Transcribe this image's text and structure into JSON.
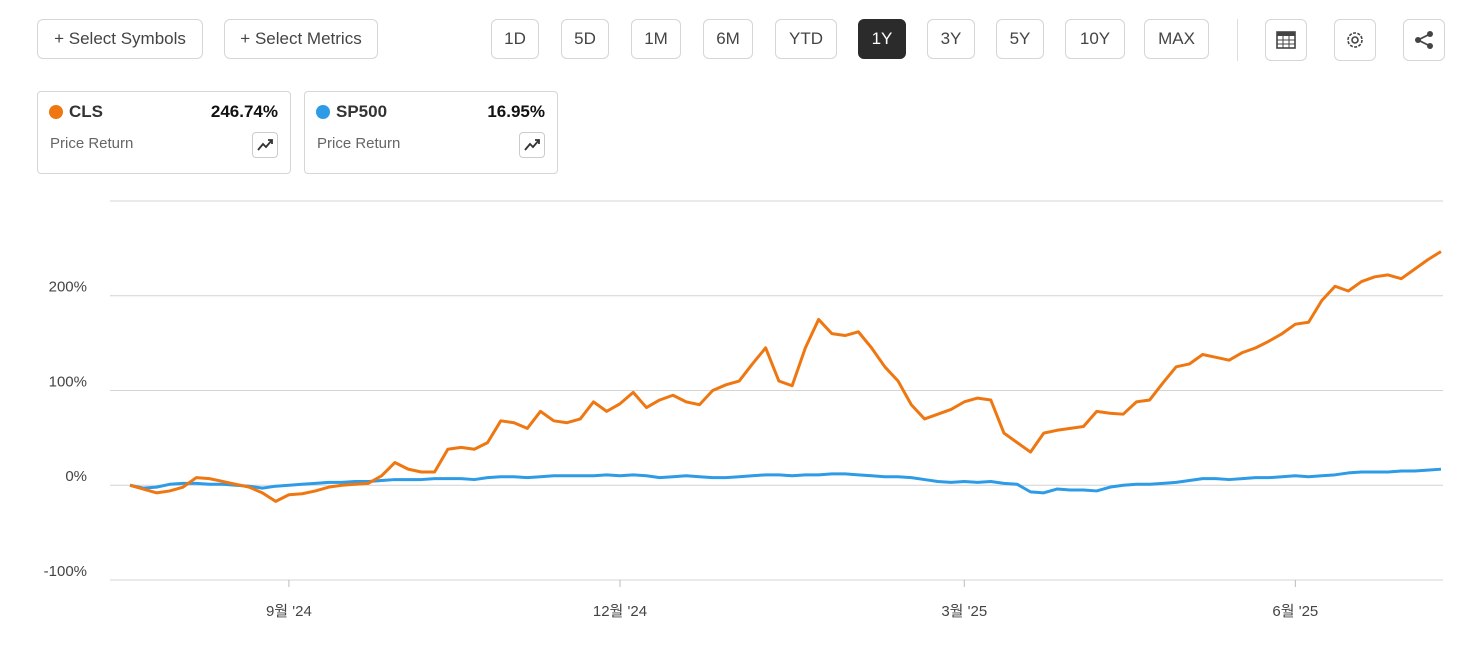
{
  "toolbar": {
    "select_symbols": "+ Select Symbols",
    "select_metrics": "+ Select Metrics",
    "ranges": [
      "1D",
      "5D",
      "1M",
      "6M",
      "YTD",
      "1Y",
      "3Y",
      "5Y",
      "10Y",
      "MAX"
    ],
    "active_range": "1Y"
  },
  "chart_data": {
    "type": "line",
    "categories": [
      null,
      null,
      null,
      null,
      null,
      null,
      null,
      null,
      null,
      null,
      null,
      null,
      "9월 '24",
      null,
      null,
      null,
      null,
      null,
      null,
      null,
      null,
      null,
      null,
      null,
      null,
      null,
      null,
      null,
      null,
      null,
      null,
      null,
      null,
      null,
      null,
      null,
      null,
      "12월 '24",
      null,
      null,
      null,
      null,
      null,
      null,
      null,
      null,
      null,
      null,
      null,
      null,
      null,
      null,
      null,
      null,
      null,
      null,
      null,
      null,
      null,
      null,
      null,
      null,
      null,
      "3월 '25",
      null,
      null,
      null,
      null,
      null,
      null,
      null,
      null,
      null,
      null,
      null,
      null,
      null,
      null,
      null,
      null,
      null,
      null,
      null,
      null,
      null,
      null,
      null,
      null,
      "6월 '25",
      null,
      null,
      null,
      null,
      null,
      null,
      null,
      null,
      null,
      null,
      null
    ],
    "series": [
      {
        "name": "CLS",
        "color": "#ef7712",
        "metric": "Price Return",
        "change_label": "246.74%",
        "values": [
          0,
          -4,
          -8,
          -6,
          -2,
          8,
          7,
          4,
          1,
          -2,
          -8,
          -17,
          -10,
          -9,
          -6,
          -2,
          0,
          1,
          2,
          10,
          24,
          17,
          14,
          14,
          38,
          40,
          38,
          45,
          68,
          66,
          60,
          78,
          68,
          66,
          70,
          88,
          78,
          86,
          98,
          82,
          90,
          95,
          88,
          85,
          100,
          106,
          110,
          128,
          145,
          110,
          105,
          145,
          175,
          160,
          158,
          162,
          145,
          125,
          110,
          85,
          70,
          75,
          80,
          88,
          92,
          90,
          55,
          45,
          35,
          55,
          58,
          60,
          62,
          78,
          76,
          75,
          88,
          90,
          108,
          125,
          128,
          138,
          135,
          132,
          140,
          145,
          152,
          160,
          170,
          172,
          195,
          210,
          205,
          215,
          220,
          222,
          218,
          228,
          238,
          246.74
        ]
      },
      {
        "name": "SP500",
        "color": "#2e9be6",
        "metric": "Price Return",
        "change_label": "16.95%",
        "values": [
          0,
          -3,
          -2,
          1,
          2,
          2,
          1,
          1,
          0,
          -1,
          -3,
          -1,
          0,
          1,
          2,
          3,
          3,
          4,
          4,
          5,
          6,
          6,
          6,
          7,
          7,
          7,
          6,
          8,
          9,
          9,
          8,
          9,
          10,
          10,
          10,
          10,
          11,
          10,
          11,
          10,
          8,
          9,
          10,
          9,
          8,
          8,
          9,
          10,
          11,
          11,
          10,
          11,
          11,
          12,
          12,
          11,
          10,
          9,
          9,
          8,
          6,
          4,
          3,
          4,
          3,
          4,
          2,
          1,
          -7,
          -8,
          -4,
          -5,
          -5,
          -6,
          -2,
          0,
          1,
          1,
          2,
          3,
          5,
          7,
          7,
          6,
          7,
          8,
          8,
          9,
          10,
          9,
          10,
          11,
          13,
          14,
          14,
          14,
          15,
          15,
          16,
          16.95
        ]
      }
    ],
    "ylim": [
      -100,
      300
    ],
    "yticks": [
      {
        "value": -100,
        "label": "-100%"
      },
      {
        "value": 0,
        "label": "0%"
      },
      {
        "value": 100,
        "label": "100%"
      },
      {
        "value": 200,
        "label": "200%"
      }
    ],
    "grid": true
  }
}
